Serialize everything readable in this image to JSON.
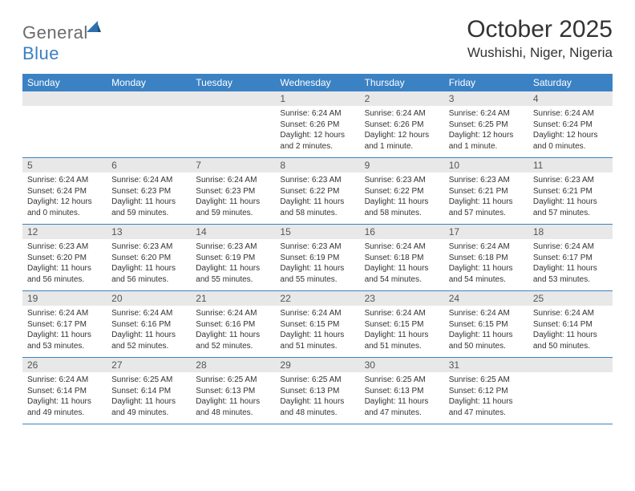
{
  "brand": {
    "name_gray": "General",
    "name_blue": "Blue"
  },
  "header": {
    "title": "October 2025",
    "location": "Wushishi, Niger, Nigeria"
  },
  "colors": {
    "header_bg": "#3b82c4",
    "daynum_bg": "#e8e8e8",
    "text": "#333333"
  },
  "calendar": {
    "type": "table",
    "weekdays": [
      "Sunday",
      "Monday",
      "Tuesday",
      "Wednesday",
      "Thursday",
      "Friday",
      "Saturday"
    ],
    "weeks": [
      [
        {
          "empty": true
        },
        {
          "empty": true
        },
        {
          "empty": true
        },
        {
          "day": "1",
          "sunrise": "Sunrise: 6:24 AM",
          "sunset": "Sunset: 6:26 PM",
          "daylight": "Daylight: 12 hours and 2 minutes."
        },
        {
          "day": "2",
          "sunrise": "Sunrise: 6:24 AM",
          "sunset": "Sunset: 6:26 PM",
          "daylight": "Daylight: 12 hours and 1 minute."
        },
        {
          "day": "3",
          "sunrise": "Sunrise: 6:24 AM",
          "sunset": "Sunset: 6:25 PM",
          "daylight": "Daylight: 12 hours and 1 minute."
        },
        {
          "day": "4",
          "sunrise": "Sunrise: 6:24 AM",
          "sunset": "Sunset: 6:24 PM",
          "daylight": "Daylight: 12 hours and 0 minutes."
        }
      ],
      [
        {
          "day": "5",
          "sunrise": "Sunrise: 6:24 AM",
          "sunset": "Sunset: 6:24 PM",
          "daylight": "Daylight: 12 hours and 0 minutes."
        },
        {
          "day": "6",
          "sunrise": "Sunrise: 6:24 AM",
          "sunset": "Sunset: 6:23 PM",
          "daylight": "Daylight: 11 hours and 59 minutes."
        },
        {
          "day": "7",
          "sunrise": "Sunrise: 6:24 AM",
          "sunset": "Sunset: 6:23 PM",
          "daylight": "Daylight: 11 hours and 59 minutes."
        },
        {
          "day": "8",
          "sunrise": "Sunrise: 6:23 AM",
          "sunset": "Sunset: 6:22 PM",
          "daylight": "Daylight: 11 hours and 58 minutes."
        },
        {
          "day": "9",
          "sunrise": "Sunrise: 6:23 AM",
          "sunset": "Sunset: 6:22 PM",
          "daylight": "Daylight: 11 hours and 58 minutes."
        },
        {
          "day": "10",
          "sunrise": "Sunrise: 6:23 AM",
          "sunset": "Sunset: 6:21 PM",
          "daylight": "Daylight: 11 hours and 57 minutes."
        },
        {
          "day": "11",
          "sunrise": "Sunrise: 6:23 AM",
          "sunset": "Sunset: 6:21 PM",
          "daylight": "Daylight: 11 hours and 57 minutes."
        }
      ],
      [
        {
          "day": "12",
          "sunrise": "Sunrise: 6:23 AM",
          "sunset": "Sunset: 6:20 PM",
          "daylight": "Daylight: 11 hours and 56 minutes."
        },
        {
          "day": "13",
          "sunrise": "Sunrise: 6:23 AM",
          "sunset": "Sunset: 6:20 PM",
          "daylight": "Daylight: 11 hours and 56 minutes."
        },
        {
          "day": "14",
          "sunrise": "Sunrise: 6:23 AM",
          "sunset": "Sunset: 6:19 PM",
          "daylight": "Daylight: 11 hours and 55 minutes."
        },
        {
          "day": "15",
          "sunrise": "Sunrise: 6:23 AM",
          "sunset": "Sunset: 6:19 PM",
          "daylight": "Daylight: 11 hours and 55 minutes."
        },
        {
          "day": "16",
          "sunrise": "Sunrise: 6:24 AM",
          "sunset": "Sunset: 6:18 PM",
          "daylight": "Daylight: 11 hours and 54 minutes."
        },
        {
          "day": "17",
          "sunrise": "Sunrise: 6:24 AM",
          "sunset": "Sunset: 6:18 PM",
          "daylight": "Daylight: 11 hours and 54 minutes."
        },
        {
          "day": "18",
          "sunrise": "Sunrise: 6:24 AM",
          "sunset": "Sunset: 6:17 PM",
          "daylight": "Daylight: 11 hours and 53 minutes."
        }
      ],
      [
        {
          "day": "19",
          "sunrise": "Sunrise: 6:24 AM",
          "sunset": "Sunset: 6:17 PM",
          "daylight": "Daylight: 11 hours and 53 minutes."
        },
        {
          "day": "20",
          "sunrise": "Sunrise: 6:24 AM",
          "sunset": "Sunset: 6:16 PM",
          "daylight": "Daylight: 11 hours and 52 minutes."
        },
        {
          "day": "21",
          "sunrise": "Sunrise: 6:24 AM",
          "sunset": "Sunset: 6:16 PM",
          "daylight": "Daylight: 11 hours and 52 minutes."
        },
        {
          "day": "22",
          "sunrise": "Sunrise: 6:24 AM",
          "sunset": "Sunset: 6:15 PM",
          "daylight": "Daylight: 11 hours and 51 minutes."
        },
        {
          "day": "23",
          "sunrise": "Sunrise: 6:24 AM",
          "sunset": "Sunset: 6:15 PM",
          "daylight": "Daylight: 11 hours and 51 minutes."
        },
        {
          "day": "24",
          "sunrise": "Sunrise: 6:24 AM",
          "sunset": "Sunset: 6:15 PM",
          "daylight": "Daylight: 11 hours and 50 minutes."
        },
        {
          "day": "25",
          "sunrise": "Sunrise: 6:24 AM",
          "sunset": "Sunset: 6:14 PM",
          "daylight": "Daylight: 11 hours and 50 minutes."
        }
      ],
      [
        {
          "day": "26",
          "sunrise": "Sunrise: 6:24 AM",
          "sunset": "Sunset: 6:14 PM",
          "daylight": "Daylight: 11 hours and 49 minutes."
        },
        {
          "day": "27",
          "sunrise": "Sunrise: 6:25 AM",
          "sunset": "Sunset: 6:14 PM",
          "daylight": "Daylight: 11 hours and 49 minutes."
        },
        {
          "day": "28",
          "sunrise": "Sunrise: 6:25 AM",
          "sunset": "Sunset: 6:13 PM",
          "daylight": "Daylight: 11 hours and 48 minutes."
        },
        {
          "day": "29",
          "sunrise": "Sunrise: 6:25 AM",
          "sunset": "Sunset: 6:13 PM",
          "daylight": "Daylight: 11 hours and 48 minutes."
        },
        {
          "day": "30",
          "sunrise": "Sunrise: 6:25 AM",
          "sunset": "Sunset: 6:13 PM",
          "daylight": "Daylight: 11 hours and 47 minutes."
        },
        {
          "day": "31",
          "sunrise": "Sunrise: 6:25 AM",
          "sunset": "Sunset: 6:12 PM",
          "daylight": "Daylight: 11 hours and 47 minutes."
        },
        {
          "empty": true
        }
      ]
    ]
  }
}
